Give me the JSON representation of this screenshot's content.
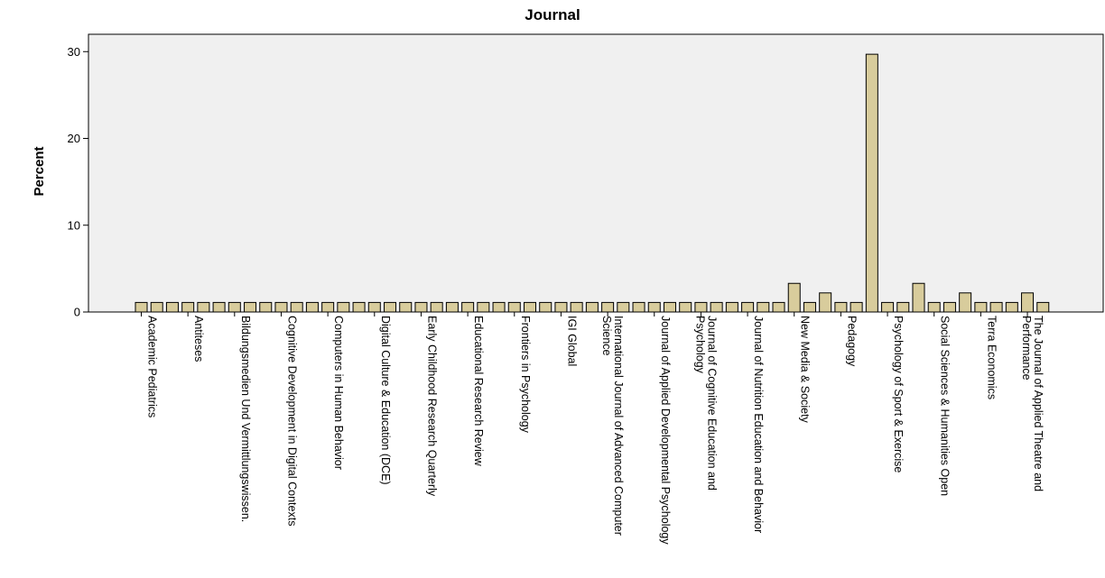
{
  "chart_data": {
    "type": "bar",
    "title": "Journal",
    "xlabel": "",
    "ylabel": "Percent",
    "ylim": [
      0,
      32
    ],
    "yticks": [
      0,
      10,
      20,
      30
    ],
    "grid": false,
    "legend": "none",
    "bar_color": "#d8cc9c",
    "plot_bg": "#f0f0f0",
    "category_labels": [
      {
        "index": 0,
        "lines": [
          "Academic Pediatrics"
        ]
      },
      {
        "index": 3,
        "lines": [
          "Antiteses"
        ]
      },
      {
        "index": 6,
        "lines": [
          "Bildungsmedien Und Vermittlungswissen."
        ]
      },
      {
        "index": 9,
        "lines": [
          "Cognitive Development in Digital Contexts"
        ]
      },
      {
        "index": 12,
        "lines": [
          "Computers in Human Behavior"
        ]
      },
      {
        "index": 15,
        "lines": [
          "Digital Culture & Education (DCE)"
        ]
      },
      {
        "index": 18,
        "lines": [
          "Early Childhood Research Quarterly"
        ]
      },
      {
        "index": 21,
        "lines": [
          "Educational Research Review"
        ]
      },
      {
        "index": 24,
        "lines": [
          "Frontiers in Psychology"
        ]
      },
      {
        "index": 27,
        "lines": [
          "IGI Global"
        ]
      },
      {
        "index": 30,
        "lines": [
          "International Journal of Advanced Computer",
          "Science"
        ]
      },
      {
        "index": 33,
        "lines": [
          "Journal of Applied Developmental Psychology"
        ]
      },
      {
        "index": 36,
        "lines": [
          "Journal of Cognitive Education and",
          "Psychology"
        ]
      },
      {
        "index": 39,
        "lines": [
          "Journal of Nutrition Education and Behavior"
        ]
      },
      {
        "index": 42,
        "lines": [
          "New Media & Society"
        ]
      },
      {
        "index": 45,
        "lines": [
          "Pedagogy"
        ]
      },
      {
        "index": 48,
        "lines": [
          "Psychology of Sport & Exercise"
        ]
      },
      {
        "index": 51,
        "lines": [
          "Social Sciences & Humanities Open"
        ]
      },
      {
        "index": 54,
        "lines": [
          "Terra Economics"
        ]
      },
      {
        "index": 57,
        "lines": [
          "The Journal of Applied Theatre and",
          "Performance"
        ]
      }
    ],
    "values": [
      1.1,
      1.1,
      1.1,
      1.1,
      1.1,
      1.1,
      1.1,
      1.1,
      1.1,
      1.1,
      1.1,
      1.1,
      1.1,
      1.1,
      1.1,
      1.1,
      1.1,
      1.1,
      1.1,
      1.1,
      1.1,
      1.1,
      1.1,
      1.1,
      1.1,
      1.1,
      1.1,
      1.1,
      1.1,
      1.1,
      1.1,
      1.1,
      1.1,
      1.1,
      1.1,
      1.1,
      1.1,
      1.1,
      1.1,
      1.1,
      1.1,
      1.1,
      3.3,
      1.1,
      2.2,
      1.1,
      1.1,
      29.7,
      1.1,
      1.1,
      3.3,
      1.1,
      1.1,
      2.2,
      1.1,
      1.1,
      1.1,
      2.2,
      1.1
    ]
  }
}
